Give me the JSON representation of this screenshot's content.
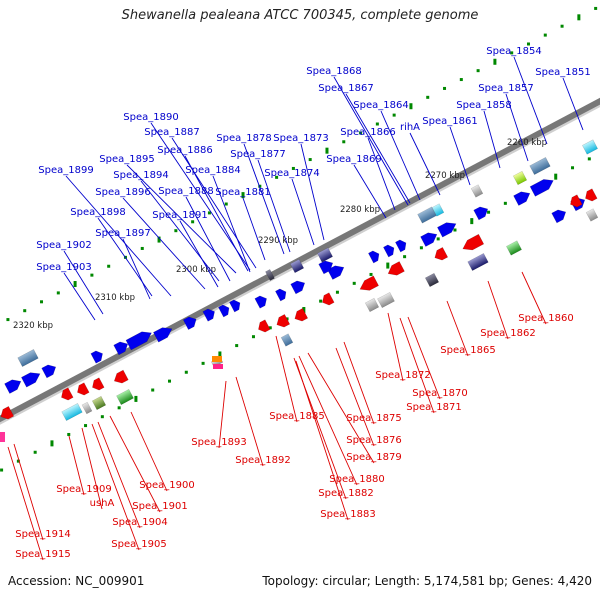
{
  "title": "Shewanella pealeana ATCC 700345, complete genome",
  "accession": "Accession: NC_009901",
  "summary": "Topology: circular; Length: 5,174,581 bp; Genes: 4,420",
  "colors": {
    "forward_label": "#0000cc",
    "reverse_label": "#dd0000",
    "forward_gene": "#0000ee",
    "reverse_gene": "#ee0000",
    "backbone": "#777777",
    "tick_dot": "#008800"
  },
  "ticks": [
    {
      "label": "2260 kbp"
    },
    {
      "label": "2270 kbp"
    },
    {
      "label": "2280 kbp"
    },
    {
      "label": "2290 kbp"
    },
    {
      "label": "2300 kbp"
    },
    {
      "label": "2310 kbp"
    },
    {
      "label": "2320 kbp"
    }
  ],
  "forward_labels": [
    "Spea_1854",
    "Spea_1851",
    "Spea_1868",
    "Spea_1857",
    "Spea_1867",
    "Spea_1864",
    "Spea_1858",
    "Spea_1890",
    "Spea_1861",
    "rihA",
    "Spea_1866",
    "Spea_1887",
    "Spea_1878",
    "Spea_1873",
    "Spea_1886",
    "Spea_1877",
    "Spea_1869",
    "Spea_1895",
    "Spea_1899",
    "Spea_1884",
    "Spea_1874",
    "Spea_1894",
    "Spea_1888",
    "Spea_1896",
    "Spea_1881",
    "Spea_1891",
    "Spea_1898",
    "Spea_1897",
    "Spea_1902",
    "Spea_1903"
  ],
  "reverse_labels": [
    "Spea_1860",
    "Spea_1862",
    "Spea_1865",
    "Spea_1872",
    "Spea_1870",
    "Spea_1871",
    "Spea_1885",
    "Spea_1875",
    "Spea_1893",
    "Spea_1876",
    "Spea_1879",
    "Spea_1892",
    "Spea_1880",
    "Spea_1900",
    "Spea_1882",
    "Spea_1909",
    "Spea_1901",
    "ushA",
    "Spea_1883",
    "Spea_1904",
    "Spea_1914",
    "Spea_1905",
    "Spea_1915"
  ]
}
